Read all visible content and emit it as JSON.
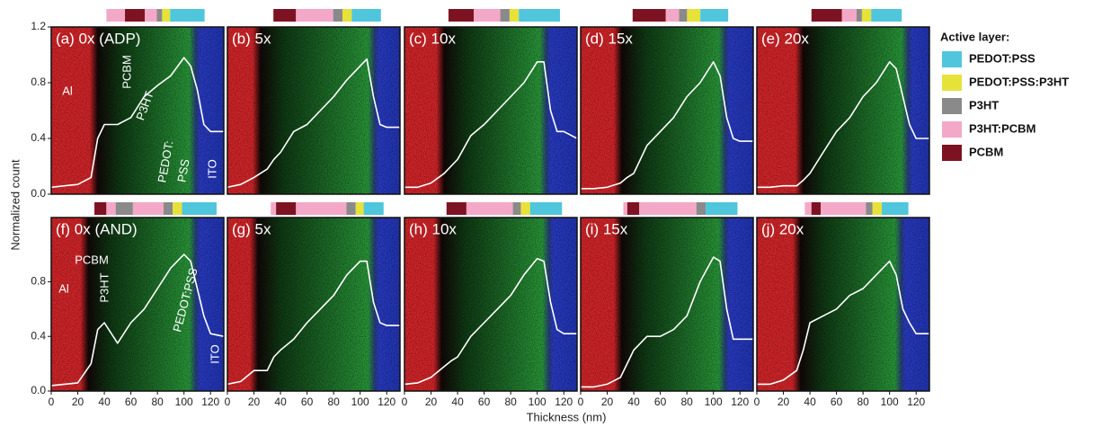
{
  "figure": {
    "xlabel": "Thickness (nm)",
    "ylabel": "Normalized count",
    "legend_title": "Active layer:",
    "legend": [
      {
        "name": "PEDOT:PSS",
        "color": "#4fc6dc"
      },
      {
        "name": "PEDOT:PSS:P3HT",
        "color": "#e6e23a"
      },
      {
        "name": "P3HT",
        "color": "#8a8a8a"
      },
      {
        "name": "P3HT:PCBM",
        "color": "#f4a8c8"
      },
      {
        "name": "PCBM",
        "color": "#7d1322"
      }
    ]
  },
  "chart_data": [
    {
      "type": "line",
      "title": "(a) 0x (ADP)",
      "color": "#ffffff",
      "xlim": [
        0,
        130
      ],
      "ylim": [
        0,
        1.2
      ],
      "yticks": [
        {
          "value": 0,
          "label": "0.0"
        },
        0.4,
        0.8,
        1.2
      ],
      "boundaries": [
        32,
        110
      ],
      "layers": [
        3,
        4,
        3,
        2,
        1,
        0
      ],
      "layer_widths": [
        14,
        15,
        9,
        4,
        6,
        26
      ],
      "annotations": [
        "Al",
        "PCBM",
        "P3HT",
        "PEDOT:",
        "PSS",
        "ITO"
      ],
      "x": [
        0,
        10,
        20,
        30,
        35,
        40,
        50,
        60,
        70,
        80,
        90,
        100,
        105,
        110,
        115,
        120,
        130
      ],
      "values": [
        0.05,
        0.06,
        0.07,
        0.12,
        0.4,
        0.5,
        0.5,
        0.55,
        0.7,
        0.78,
        0.85,
        0.98,
        0.92,
        0.75,
        0.5,
        0.45,
        0.45
      ]
    },
    {
      "type": "line",
      "title": "(b) 5x",
      "color": "#ffffff",
      "xlim": [
        0,
        130
      ],
      "ylim": [
        0,
        1.2
      ],
      "boundaries": [
        22,
        112
      ],
      "layers": [
        4,
        3,
        2,
        1,
        0
      ],
      "layer_widths": [
        17,
        28,
        7,
        7,
        22
      ],
      "x": [
        0,
        10,
        20,
        30,
        35,
        40,
        50,
        60,
        70,
        80,
        90,
        100,
        105,
        110,
        115,
        120,
        130
      ],
      "values": [
        0.05,
        0.07,
        0.12,
        0.18,
        0.25,
        0.3,
        0.45,
        0.5,
        0.6,
        0.7,
        0.82,
        0.92,
        0.97,
        0.7,
        0.5,
        0.48,
        0.48
      ]
    },
    {
      "type": "line",
      "title": "(c) 10x",
      "color": "#ffffff",
      "xlim": [
        0,
        130
      ],
      "ylim": [
        0,
        1.2
      ],
      "boundaries": [
        27,
        108
      ],
      "layers": [
        4,
        3,
        2,
        1,
        0
      ],
      "layer_widths": [
        19,
        20,
        7,
        7,
        31
      ],
      "x": [
        0,
        10,
        20,
        30,
        35,
        40,
        50,
        60,
        70,
        80,
        90,
        100,
        105,
        110,
        115,
        120,
        130
      ],
      "values": [
        0.05,
        0.05,
        0.08,
        0.15,
        0.2,
        0.25,
        0.42,
        0.5,
        0.6,
        0.7,
        0.8,
        0.95,
        0.95,
        0.6,
        0.45,
        0.45,
        0.4
      ]
    },
    {
      "type": "line",
      "title": "(d) 15x",
      "color": "#ffffff",
      "xlim": [
        0,
        130
      ],
      "ylim": [
        0,
        1.2
      ],
      "boundaries": [
        28,
        110
      ],
      "layers": [
        4,
        3,
        2,
        1,
        0
      ],
      "layer_widths": [
        25,
        10,
        6,
        10,
        21
      ],
      "x": [
        0,
        10,
        20,
        30,
        35,
        40,
        50,
        60,
        70,
        80,
        90,
        100,
        105,
        110,
        115,
        120,
        130
      ],
      "values": [
        0.04,
        0.04,
        0.05,
        0.08,
        0.12,
        0.15,
        0.35,
        0.45,
        0.55,
        0.7,
        0.8,
        0.95,
        0.85,
        0.55,
        0.4,
        0.38,
        0.38
      ]
    },
    {
      "type": "line",
      "title": "(e) 20x",
      "color": "#ffffff",
      "xlim": [
        0,
        130
      ],
      "ylim": [
        0,
        1.2
      ],
      "boundaries": [
        32,
        115
      ],
      "layers": [
        4,
        3,
        2,
        1,
        0
      ],
      "layer_widths": [
        23,
        11,
        4,
        7,
        23
      ],
      "x": [
        0,
        10,
        20,
        30,
        35,
        40,
        50,
        60,
        70,
        80,
        90,
        100,
        105,
        110,
        115,
        120,
        130
      ],
      "values": [
        0.05,
        0.05,
        0.06,
        0.06,
        0.1,
        0.15,
        0.3,
        0.45,
        0.55,
        0.7,
        0.8,
        0.95,
        0.9,
        0.7,
        0.5,
        0.4,
        0.4
      ]
    },
    {
      "type": "line",
      "title": "(f) 0x (AND)",
      "color": "#ffffff",
      "xlim": [
        0,
        130
      ],
      "ylim": [
        0,
        1.27
      ],
      "yticks": [
        {
          "value": 0,
          "label": "0.0"
        },
        0.4,
        0.8
      ],
      "xticks": [
        0,
        20,
        40,
        60,
        80,
        100,
        120
      ],
      "boundaries": [
        25,
        110
      ],
      "layers": [
        4,
        3,
        2,
        3,
        2,
        1,
        0
      ],
      "layer_widths": [
        9,
        7,
        13,
        23,
        7,
        7,
        26
      ],
      "annotations": [
        "Al",
        "PCBM",
        "P3HT",
        "PEDOT:PSS",
        "ITO"
      ],
      "x": [
        0,
        10,
        20,
        30,
        35,
        40,
        50,
        60,
        70,
        80,
        90,
        100,
        105,
        110,
        115,
        120,
        130
      ],
      "values": [
        0.04,
        0.05,
        0.06,
        0.2,
        0.45,
        0.5,
        0.35,
        0.5,
        0.6,
        0.75,
        0.9,
        1.0,
        0.95,
        0.75,
        0.55,
        0.42,
        0.4
      ]
    },
    {
      "type": "line",
      "title": "(g) 5x",
      "color": "#ffffff",
      "xlim": [
        0,
        130
      ],
      "ylim": [
        0,
        1.27
      ],
      "xticks": [
        0,
        20,
        40,
        60,
        80,
        100,
        120
      ],
      "boundaries": [
        20,
        112
      ],
      "layers": [
        3,
        4,
        3,
        2,
        1,
        0
      ],
      "layer_widths": [
        4,
        15,
        38,
        7,
        6,
        15
      ],
      "x": [
        0,
        10,
        20,
        30,
        35,
        40,
        50,
        60,
        70,
        80,
        90,
        100,
        105,
        110,
        115,
        120,
        130
      ],
      "values": [
        0.05,
        0.07,
        0.15,
        0.15,
        0.25,
        0.3,
        0.38,
        0.5,
        0.6,
        0.7,
        0.85,
        0.95,
        0.95,
        0.65,
        0.5,
        0.48,
        0.48
      ]
    },
    {
      "type": "line",
      "title": "(h) 10x",
      "color": "#ffffff",
      "xlim": [
        0,
        130
      ],
      "ylim": [
        0,
        1.27
      ],
      "xticks": [
        0,
        20,
        40,
        60,
        80,
        100,
        120
      ],
      "boundaries": [
        25,
        110
      ],
      "layers": [
        4,
        3,
        2,
        1,
        0
      ],
      "layer_widths": [
        15,
        35,
        6,
        7,
        24
      ],
      "x": [
        0,
        10,
        20,
        30,
        35,
        40,
        50,
        60,
        70,
        80,
        90,
        100,
        105,
        110,
        115,
        120,
        130
      ],
      "values": [
        0.05,
        0.06,
        0.1,
        0.18,
        0.22,
        0.25,
        0.4,
        0.5,
        0.6,
        0.7,
        0.85,
        0.97,
        0.95,
        0.65,
        0.45,
        0.42,
        0.42
      ]
    },
    {
      "type": "line",
      "title": "(i) 15x",
      "color": "#ffffff",
      "xlim": [
        0,
        130
      ],
      "ylim": [
        0,
        1.27
      ],
      "xticks": [
        0,
        20,
        40,
        60,
        80,
        100,
        120
      ],
      "boundaries": [
        28,
        110
      ],
      "layers": [
        3,
        4,
        3,
        2,
        0
      ],
      "layer_widths": [
        3,
        9,
        43,
        7,
        24
      ],
      "x": [
        0,
        10,
        20,
        30,
        35,
        40,
        50,
        60,
        70,
        80,
        90,
        100,
        105,
        110,
        115,
        120,
        130
      ],
      "values": [
        0.03,
        0.03,
        0.05,
        0.1,
        0.2,
        0.3,
        0.4,
        0.4,
        0.45,
        0.55,
        0.8,
        0.98,
        0.95,
        0.6,
        0.38,
        0.38,
        0.38
      ]
    },
    {
      "type": "line",
      "title": "(j) 20x",
      "color": "#ffffff",
      "xlim": [
        0,
        130
      ],
      "ylim": [
        0,
        1.27
      ],
      "xticks": [
        0,
        20,
        40,
        60,
        80,
        100,
        120
      ],
      "boundaries": [
        30,
        110
      ],
      "layers": [
        3,
        4,
        3,
        2,
        1,
        0
      ],
      "layer_widths": [
        5,
        7,
        34,
        5,
        7,
        20
      ],
      "x": [
        0,
        10,
        20,
        30,
        35,
        40,
        50,
        60,
        70,
        80,
        90,
        100,
        105,
        110,
        115,
        120,
        130
      ],
      "values": [
        0.05,
        0.05,
        0.08,
        0.15,
        0.3,
        0.5,
        0.55,
        0.6,
        0.7,
        0.75,
        0.85,
        0.95,
        0.85,
        0.6,
        0.5,
        0.42,
        0.42
      ]
    }
  ]
}
